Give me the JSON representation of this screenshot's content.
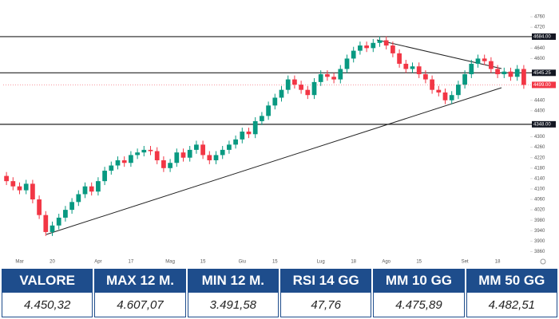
{
  "chart_data": {
    "type": "candlestick",
    "categories": [
      null,
      null,
      "Mar",
      null,
      null,
      null,
      null,
      "20",
      null,
      null,
      null,
      null,
      null,
      null,
      "Apr",
      null,
      null,
      null,
      null,
      "17",
      null,
      null,
      null,
      null,
      null,
      "Mag",
      null,
      null,
      null,
      null,
      "15",
      null,
      null,
      null,
      null,
      null,
      "Giu",
      null,
      null,
      null,
      null,
      "15",
      null,
      null,
      null,
      null,
      null,
      null,
      "Lug",
      null,
      null,
      null,
      null,
      "18",
      null,
      null,
      null,
      null,
      "Ago",
      null,
      null,
      null,
      null,
      "15",
      null,
      null,
      null,
      null,
      null,
      null,
      "Set",
      null,
      null,
      null,
      null,
      "18",
      null,
      null,
      null,
      null
    ],
    "open": [
      4150,
      4130,
      4110,
      4095,
      4120,
      4060,
      4000,
      3935,
      3960,
      3990,
      4020,
      4050,
      4080,
      4110,
      4090,
      4130,
      4170,
      4190,
      4210,
      4200,
      4230,
      4240,
      4250,
      4245,
      4210,
      4180,
      4200,
      4240,
      4220,
      4250,
      4270,
      4230,
      4210,
      4230,
      4250,
      4270,
      4290,
      4320,
      4310,
      4360,
      4380,
      4420,
      4450,
      4480,
      4520,
      4500,
      4480,
      4460,
      4510,
      4540,
      4530,
      4520,
      4560,
      4600,
      4630,
      4650,
      4640,
      4660,
      4670,
      4650,
      4620,
      4580,
      4560,
      4570,
      4540,
      4520,
      4480,
      4470,
      4440,
      4460,
      4500,
      4540,
      4580,
      4600,
      4590,
      4560,
      4540,
      4550,
      4530,
      4560
    ],
    "high": [
      4165,
      4145,
      4125,
      4135,
      4135,
      4075,
      4015,
      3975,
      4005,
      4035,
      4065,
      4095,
      4125,
      4125,
      4145,
      4185,
      4205,
      4225,
      4225,
      4245,
      4255,
      4265,
      4265,
      4260,
      4225,
      4215,
      4255,
      4255,
      4265,
      4285,
      4285,
      4245,
      4245,
      4265,
      4285,
      4305,
      4335,
      4335,
      4375,
      4395,
      4435,
      4465,
      4495,
      4535,
      4535,
      4515,
      4495,
      4525,
      4555,
      4555,
      4545,
      4575,
      4615,
      4645,
      4665,
      4665,
      4675,
      4685,
      4685,
      4665,
      4635,
      4595,
      4585,
      4585,
      4555,
      4535,
      4495,
      4485,
      4475,
      4515,
      4555,
      4595,
      4615,
      4615,
      4605,
      4575,
      4565,
      4565,
      4575,
      4575
    ],
    "low": [
      4115,
      4095,
      4080,
      4080,
      4045,
      3985,
      3920,
      3920,
      3945,
      3975,
      4005,
      4035,
      4065,
      4075,
      4075,
      4115,
      4155,
      4175,
      4185,
      4185,
      4215,
      4225,
      4230,
      4195,
      4165,
      4165,
      4185,
      4205,
      4205,
      4235,
      4215,
      4195,
      4195,
      4215,
      4235,
      4255,
      4275,
      4295,
      4295,
      4345,
      4365,
      4405,
      4435,
      4465,
      4485,
      4465,
      4445,
      4445,
      4495,
      4515,
      4505,
      4505,
      4545,
      4585,
      4615,
      4625,
      4625,
      4645,
      4635,
      4605,
      4565,
      4545,
      4545,
      4525,
      4505,
      4465,
      4455,
      4425,
      4425,
      4445,
      4485,
      4525,
      4565,
      4575,
      4545,
      4525,
      4525,
      4515,
      4515,
      4484
    ],
    "close": [
      4130,
      4110,
      4095,
      4120,
      4060,
      4000,
      3935,
      3960,
      3990,
      4020,
      4050,
      4080,
      4110,
      4090,
      4130,
      4170,
      4190,
      4210,
      4200,
      4230,
      4240,
      4250,
      4245,
      4210,
      4180,
      4200,
      4240,
      4220,
      4250,
      4270,
      4230,
      4210,
      4230,
      4250,
      4270,
      4290,
      4320,
      4310,
      4360,
      4380,
      4420,
      4450,
      4480,
      4520,
      4500,
      4480,
      4460,
      4510,
      4540,
      4530,
      4520,
      4560,
      4600,
      4630,
      4650,
      4640,
      4660,
      4670,
      4650,
      4620,
      4580,
      4560,
      4570,
      4540,
      4520,
      4480,
      4470,
      4440,
      4460,
      4500,
      4540,
      4580,
      4600,
      4590,
      4560,
      4540,
      4550,
      4530,
      4560,
      4499
    ],
    "up_color": "#089981",
    "down_color": "#f23645",
    "ylim": [
      3840,
      4800
    ],
    "yticks": [
      4760,
      4720,
      4640,
      4600,
      4440,
      4400,
      4300,
      4260,
      4220,
      4180,
      4140,
      4100,
      4060,
      4020,
      3980,
      3940,
      3900,
      3860
    ],
    "levels": [
      {
        "value": 4684,
        "label": "4684.00"
      },
      {
        "value": 4545.25,
        "label": "4545.25"
      },
      {
        "value": 4348,
        "label": "4348.00"
      }
    ],
    "last_price": {
      "value": 4499,
      "label": "4499.00"
    }
  },
  "table": {
    "headers": [
      "VALORE",
      "MAX 12 M.",
      "MIN 12 M.",
      "RSI 14 GG",
      "MM 10 GG",
      "MM 50 GG"
    ],
    "rows": [
      [
        "4.450,32",
        "4.607,07",
        "3.491,58",
        "47,76",
        "4.475,89",
        "4.482,51"
      ]
    ]
  }
}
